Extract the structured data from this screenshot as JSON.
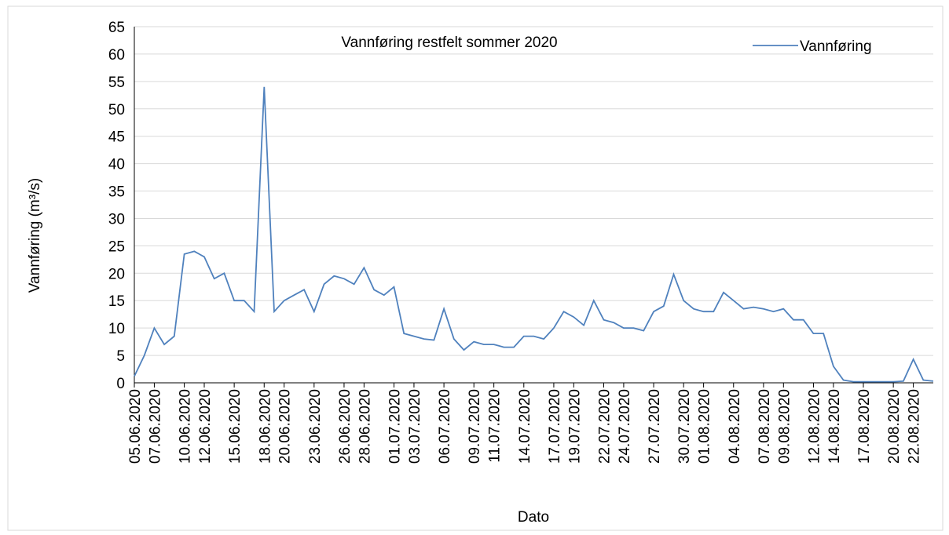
{
  "chart_data": {
    "type": "line",
    "title": "Vannføring restfelt sommer  2020",
    "x_label": "Dato",
    "y_label": "Vannføring (m³/s)",
    "x": [
      "05.06.2020",
      "06.06.2020",
      "07.06.2020",
      "08.06.2020",
      "09.06.2020",
      "10.06.2020",
      "11.06.2020",
      "12.06.2020",
      "13.06.2020",
      "14.06.2020",
      "15.06.2020",
      "16.06.2020",
      "17.06.2020",
      "18.06.2020",
      "19.06.2020",
      "20.06.2020",
      "21.06.2020",
      "22.06.2020",
      "23.06.2020",
      "24.06.2020",
      "25.06.2020",
      "26.06.2020",
      "27.06.2020",
      "28.06.2020",
      "29.06.2020",
      "30.06.2020",
      "01.07.2020",
      "02.07.2020",
      "03.07.2020",
      "04.07.2020",
      "05.07.2020",
      "06.07.2020",
      "07.07.2020",
      "08.07.2020",
      "09.07.2020",
      "10.07.2020",
      "11.07.2020",
      "12.07.2020",
      "13.07.2020",
      "14.07.2020",
      "15.07.2020",
      "16.07.2020",
      "17.07.2020",
      "18.07.2020",
      "19.07.2020",
      "20.07.2020",
      "21.07.2020",
      "22.07.2020",
      "23.07.2020",
      "24.07.2020",
      "25.07.2020",
      "26.07.2020",
      "27.07.2020",
      "28.07.2020",
      "29.07.2020",
      "30.07.2020",
      "31.07.2020",
      "01.08.2020",
      "02.08.2020",
      "03.08.2020",
      "04.08.2020",
      "05.08.2020",
      "06.08.2020",
      "07.08.2020",
      "08.08.2020",
      "09.08.2020",
      "10.08.2020",
      "11.08.2020",
      "12.08.2020",
      "13.08.2020",
      "14.08.2020",
      "15.08.2020",
      "16.08.2020",
      "17.08.2020",
      "18.08.2020",
      "19.08.2020",
      "20.08.2020",
      "21.08.2020",
      "22.08.2020",
      "23.08.2020",
      "24.08.2020"
    ],
    "series": [
      {
        "name": "Vannføring",
        "color": "#4f81bd",
        "values": [
          1.2,
          5,
          10,
          7,
          8.5,
          23.5,
          24,
          23,
          19,
          20,
          15,
          15,
          13,
          54,
          13,
          15,
          16,
          17,
          13,
          18,
          19.5,
          19,
          18,
          21,
          17,
          16,
          17.5,
          9,
          8.5,
          8,
          7.8,
          13.5,
          8,
          6,
          7.5,
          7,
          7,
          6.5,
          6.5,
          8.5,
          8.5,
          8,
          10,
          13,
          12,
          10.5,
          15,
          11.5,
          11,
          10,
          10,
          9.5,
          13,
          14,
          19.8,
          15,
          13.5,
          13,
          13,
          16.5,
          15,
          13.5,
          13.8,
          13.5,
          13,
          13.5,
          11.5,
          11.5,
          9,
          9,
          3,
          0.5,
          0.2,
          0.2,
          0.2,
          0.2,
          0.2,
          0.3,
          4.3,
          0.5,
          0.3
        ]
      }
    ],
    "xlim": [
      "05.06.2020",
      "24.08.2020"
    ],
    "xticks": [
      "05.06.2020",
      "07.06.2020",
      "10.06.2020",
      "12.06.2020",
      "15.06.2020",
      "18.06.2020",
      "20.06.2020",
      "23.06.2020",
      "26.06.2020",
      "28.06.2020",
      "01.07.2020",
      "03.07.2020",
      "06.07.2020",
      "09.07.2020",
      "11.07.2020",
      "14.07.2020",
      "17.07.2020",
      "19.07.2020",
      "22.07.2020",
      "24.07.2020",
      "27.07.2020",
      "30.07.2020",
      "01.08.2020",
      "04.08.2020",
      "07.08.2020",
      "09.08.2020",
      "12.08.2020",
      "14.08.2020",
      "17.08.2020",
      "20.08.2020",
      "22.08.2020"
    ],
    "ylim": [
      0,
      65
    ],
    "yticks": [
      0,
      5,
      10,
      15,
      20,
      25,
      30,
      35,
      40,
      45,
      50,
      55,
      60,
      65
    ],
    "grid": true,
    "legend": "top-right"
  }
}
